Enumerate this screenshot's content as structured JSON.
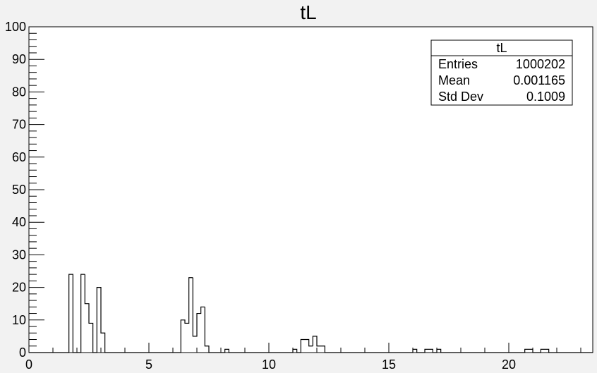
{
  "chart_data": {
    "type": "bar",
    "title": "tL",
    "xlabel": "",
    "ylabel": "",
    "xlim": [
      0,
      23.5
    ],
    "ylim": [
      0,
      100
    ],
    "x_ticks": [
      0,
      5,
      10,
      15,
      20
    ],
    "y_ticks": [
      0,
      10,
      20,
      30,
      40,
      50,
      60,
      70,
      80,
      90,
      100
    ],
    "grid": false,
    "legend": "none",
    "bin_width": 0.1667,
    "bins": [
      {
        "x0": 1.667,
        "value": 24
      },
      {
        "x0": 2.167,
        "value": 24
      },
      {
        "x0": 2.333,
        "value": 15
      },
      {
        "x0": 2.5,
        "value": 9
      },
      {
        "x0": 2.833,
        "value": 20
      },
      {
        "x0": 3.0,
        "value": 6
      },
      {
        "x0": 6.333,
        "value": 10
      },
      {
        "x0": 6.5,
        "value": 9
      },
      {
        "x0": 6.667,
        "value": 23
      },
      {
        "x0": 6.833,
        "value": 5
      },
      {
        "x0": 7.0,
        "value": 12
      },
      {
        "x0": 7.167,
        "value": 14
      },
      {
        "x0": 7.333,
        "value": 2
      },
      {
        "x0": 8.167,
        "value": 1
      },
      {
        "x0": 11.0,
        "value": 1
      },
      {
        "x0": 11.333,
        "value": 4
      },
      {
        "x0": 11.5,
        "value": 4
      },
      {
        "x0": 11.667,
        "value": 2
      },
      {
        "x0": 11.833,
        "value": 5
      },
      {
        "x0": 12.0,
        "value": 2
      },
      {
        "x0": 12.167,
        "value": 2
      },
      {
        "x0": 16.0,
        "value": 1
      },
      {
        "x0": 16.5,
        "value": 1
      },
      {
        "x0": 16.667,
        "value": 1
      },
      {
        "x0": 17.0,
        "value": 1
      },
      {
        "x0": 20.667,
        "value": 1
      },
      {
        "x0": 20.833,
        "value": 1
      },
      {
        "x0": 21.333,
        "value": 1
      },
      {
        "x0": 21.5,
        "value": 1
      }
    ],
    "stats": {
      "header": "tL",
      "rows": [
        {
          "label": "Entries",
          "value": "1000202"
        },
        {
          "label": "Mean",
          "value": "0.001165"
        },
        {
          "label": "Std Dev",
          "value": "0.1009"
        }
      ]
    }
  },
  "colors": {
    "background": "#f2f2f2",
    "frame_fill": "#ffffff",
    "line": "#000000"
  }
}
